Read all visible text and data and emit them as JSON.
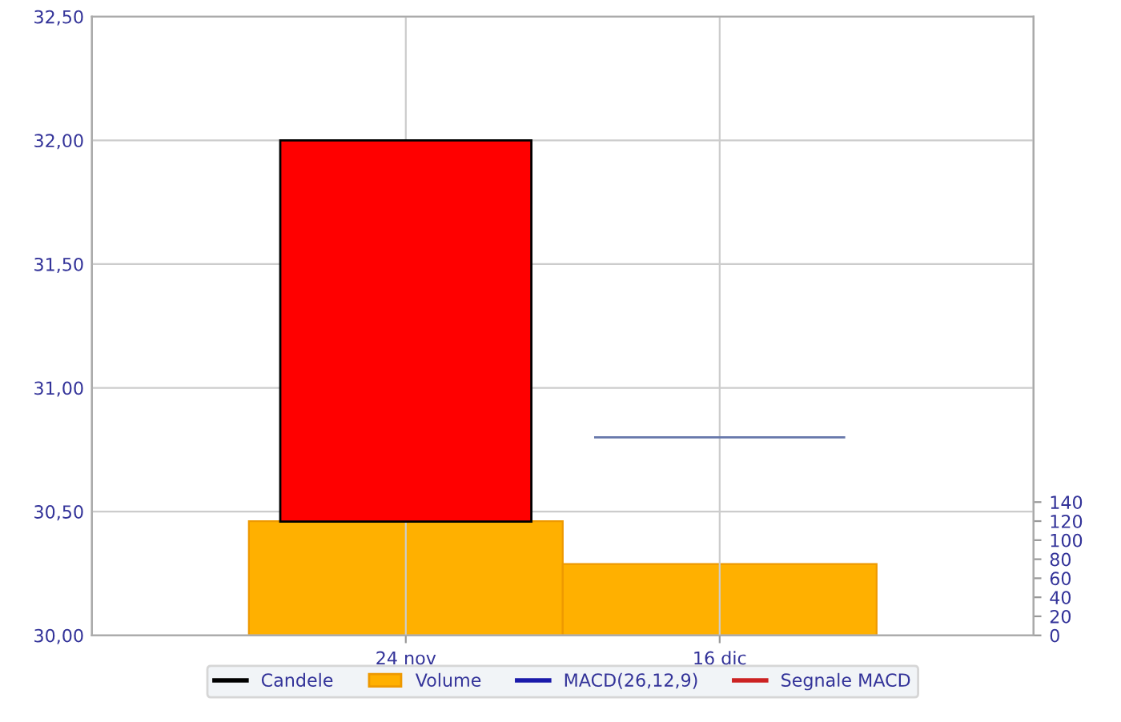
{
  "chart_data": {
    "type": "candlestick",
    "categories": [
      "24 nov",
      "16 dic"
    ],
    "series": [
      {
        "name": "Candele",
        "color": "#000000",
        "ohlc": [
          [
            32.0,
            32.0,
            30.46,
            30.46
          ],
          [
            30.8,
            30.8,
            30.8,
            30.8
          ]
        ],
        "colors": [
          "#ff0000",
          "#6677aa"
        ]
      },
      {
        "name": "Volume",
        "type": "bar",
        "axis": "y2",
        "color": "#ffb000",
        "values": [
          120,
          75
        ]
      },
      {
        "name": "MACD(26,12,9)",
        "type": "line",
        "color": "#1a1aaa",
        "values": [
          null,
          null
        ]
      },
      {
        "name": "Segnale MACD",
        "type": "line",
        "color": "#cc2222",
        "values": [
          null,
          null
        ]
      }
    ],
    "ylim": [
      30,
      32.5
    ],
    "yticks": [
      {
        "value": 30,
        "label": "30,00"
      },
      {
        "value": 30.5,
        "label": "30,50"
      },
      {
        "value": 31,
        "label": "31,00"
      },
      {
        "value": 31.5,
        "label": "31,50"
      },
      {
        "value": 32,
        "label": "32,00"
      },
      {
        "value": 32.5,
        "label": "32,50"
      }
    ],
    "y2lim": [
      0,
      650
    ],
    "y2ticks": [
      0,
      20,
      40,
      60,
      80,
      100,
      120,
      140
    ],
    "grid": true,
    "legend": "bottom"
  }
}
